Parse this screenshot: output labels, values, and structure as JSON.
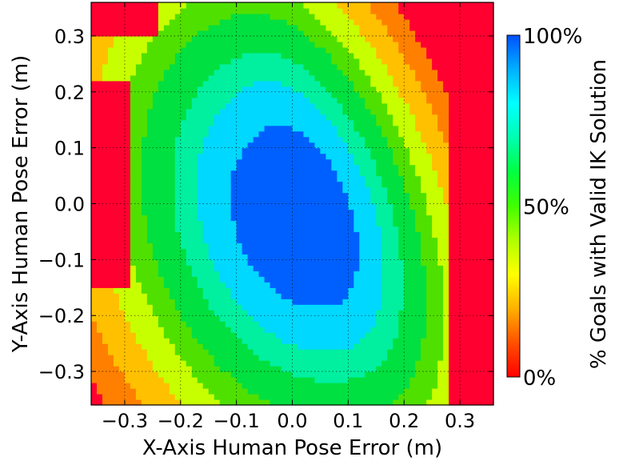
{
  "chart_data": {
    "type": "heatmap",
    "xlabel": "X-Axis Human Pose Error (m)",
    "ylabel": "Y-Axis Human Pose Error (m)",
    "xlim": [
      -0.36,
      0.36
    ],
    "ylim": [
      -0.36,
      0.36
    ],
    "xticks": [
      -0.3,
      -0.2,
      -0.1,
      0.0,
      0.1,
      0.2,
      0.3
    ],
    "xtick_labels": [
      "−0.3",
      "−0.2",
      "−0.1",
      "0.0",
      "0.1",
      "0.2",
      "0.3"
    ],
    "yticks": [
      -0.3,
      -0.2,
      -0.1,
      0.0,
      0.1,
      0.2,
      0.3
    ],
    "ytick_labels": [
      "−0.3",
      "−0.2",
      "−0.1",
      "0.0",
      "0.1",
      "0.2",
      "0.3"
    ],
    "grid": true,
    "colormap": [
      "#ff0030",
      "#ff8000",
      "#ffc000",
      "#c8ff00",
      "#50e000",
      "#00e040",
      "#00f0a0",
      "#00d8ff",
      "#0060ff"
    ],
    "colorbar": {
      "label": "% Goals with Valid IK Solution",
      "tick_labels": [
        "0%",
        "50%",
        "100%"
      ],
      "tick_values": [
        0,
        50,
        100
      ],
      "gradient_stops": [
        "#ff0000",
        "#ff5000",
        "#ffb000",
        "#ffff00",
        "#b0ff00",
        "#40ff00",
        "#00ff40",
        "#00ffb0",
        "#00ffff",
        "#00b0ff",
        "#0050ff"
      ]
    },
    "grid_resolution": [
      72,
      72
    ],
    "center": [
      0.02,
      -0.02
    ],
    "levels": [
      {
        "value": 95,
        "color": "#0060ff",
        "radius": 0.105
      },
      {
        "value": 82,
        "color": "#00d8ff",
        "radius": 0.155
      },
      {
        "value": 72,
        "color": "#00f0a0",
        "radius": 0.19
      },
      {
        "value": 62,
        "color": "#00e040",
        "radius": 0.235
      },
      {
        "value": 50,
        "color": "#50e000",
        "radius": 0.27
      },
      {
        "value": 40,
        "color": "#c8ff00",
        "radius": 0.31
      },
      {
        "value": 25,
        "color": "#ffc000",
        "radius": 0.355
      },
      {
        "value": 12,
        "color": "#ff8000",
        "radius": 0.4
      },
      {
        "value": 0,
        "color": "#ff0030",
        "radius": 99
      }
    ],
    "right_red_band_x": 0.285,
    "left_red_patches": [
      {
        "x": [
          -0.36,
          -0.29
        ],
        "y": [
          -0.15,
          0.22
        ]
      },
      {
        "x": [
          -0.36,
          -0.24
        ],
        "y": [
          0.3,
          0.36
        ]
      }
    ]
  }
}
